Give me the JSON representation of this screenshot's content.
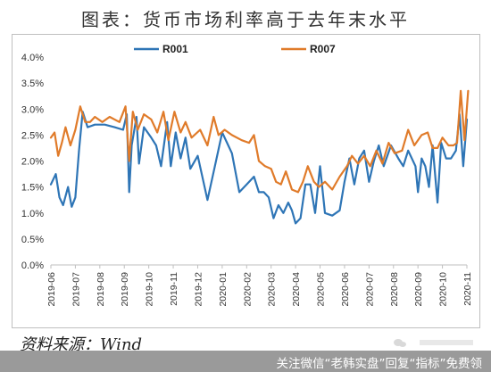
{
  "title": "图表：货币市场利率高于去年末水平",
  "source": "资料来源：Wind",
  "footer_text": "关注微信“老韩实盘”回复“指标”免费领",
  "icons": [
    "wechat-icon"
  ],
  "chart_data": {
    "type": "line",
    "title": "图表：货币市场利率高于去年末水平",
    "xlabel": "",
    "ylabel": "",
    "ylim": [
      0.0,
      4.0
    ],
    "yticks": [
      "0.0%",
      "0.5%",
      "1.0%",
      "1.5%",
      "2.0%",
      "2.5%",
      "3.0%",
      "3.5%",
      "4.0%"
    ],
    "xticks": [
      "2019-06",
      "2019-07",
      "2019-08",
      "2019-09",
      "2019-10",
      "2019-11",
      "2019-12",
      "2020-01",
      "2020-02",
      "2020-03",
      "2020-04",
      "2020-05",
      "2020-06",
      "2020-07",
      "2020-08",
      "2020-09",
      "2020-10",
      "2020-11"
    ],
    "legend_position": "top",
    "grid": false,
    "series": [
      {
        "name": "R001",
        "color": "#2E75B6",
        "points": [
          [
            0.0,
            1.55
          ],
          [
            0.2,
            1.75
          ],
          [
            0.35,
            1.3
          ],
          [
            0.5,
            1.15
          ],
          [
            0.7,
            1.5
          ],
          [
            0.85,
            1.12
          ],
          [
            1.0,
            1.3
          ],
          [
            1.15,
            2.2
          ],
          [
            1.3,
            2.95
          ],
          [
            1.5,
            2.65
          ],
          [
            1.8,
            2.7
          ],
          [
            2.2,
            2.7
          ],
          [
            2.6,
            2.65
          ],
          [
            2.95,
            2.6
          ],
          [
            3.1,
            2.9
          ],
          [
            3.2,
            1.4
          ],
          [
            3.3,
            2.3
          ],
          [
            3.5,
            2.85
          ],
          [
            3.6,
            1.95
          ],
          [
            3.8,
            2.65
          ],
          [
            4.1,
            2.45
          ],
          [
            4.3,
            2.3
          ],
          [
            4.5,
            1.9
          ],
          [
            4.75,
            2.75
          ],
          [
            4.9,
            1.9
          ],
          [
            5.1,
            2.55
          ],
          [
            5.3,
            2.05
          ],
          [
            5.5,
            2.45
          ],
          [
            5.7,
            1.85
          ],
          [
            6.0,
            2.1
          ],
          [
            6.4,
            1.25
          ],
          [
            6.7,
            1.9
          ],
          [
            7.0,
            2.55
          ],
          [
            7.4,
            2.15
          ],
          [
            7.7,
            1.4
          ],
          [
            8.0,
            1.55
          ],
          [
            8.3,
            1.7
          ],
          [
            8.5,
            1.4
          ],
          [
            8.7,
            1.4
          ],
          [
            8.9,
            1.3
          ],
          [
            9.1,
            0.9
          ],
          [
            9.3,
            1.15
          ],
          [
            9.5,
            1.0
          ],
          [
            9.7,
            1.2
          ],
          [
            9.85,
            1.05
          ],
          [
            10.0,
            0.8
          ],
          [
            10.2,
            0.9
          ],
          [
            10.4,
            1.55
          ],
          [
            10.6,
            1.55
          ],
          [
            10.8,
            1.0
          ],
          [
            11.0,
            1.9
          ],
          [
            11.2,
            1.0
          ],
          [
            11.5,
            0.95
          ],
          [
            11.8,
            1.05
          ],
          [
            12.0,
            1.6
          ],
          [
            12.2,
            2.05
          ],
          [
            12.4,
            1.55
          ],
          [
            12.6,
            2.05
          ],
          [
            12.8,
            2.2
          ],
          [
            13.0,
            1.6
          ],
          [
            13.2,
            2.0
          ],
          [
            13.4,
            2.3
          ],
          [
            13.6,
            1.9
          ],
          [
            13.9,
            2.3
          ],
          [
            14.2,
            2.05
          ],
          [
            14.4,
            1.9
          ],
          [
            14.6,
            2.2
          ],
          [
            14.9,
            1.9
          ],
          [
            15.0,
            1.4
          ],
          [
            15.15,
            2.05
          ],
          [
            15.3,
            1.9
          ],
          [
            15.45,
            1.5
          ],
          [
            15.6,
            2.3
          ],
          [
            15.8,
            1.2
          ],
          [
            15.95,
            2.35
          ],
          [
            16.15,
            2.05
          ],
          [
            16.35,
            2.05
          ],
          [
            16.55,
            2.2
          ],
          [
            16.7,
            2.9
          ],
          [
            16.85,
            1.9
          ],
          [
            17.0,
            2.8
          ]
        ]
      },
      {
        "name": "R007",
        "color": "#E07B2A",
        "points": [
          [
            0.0,
            2.45
          ],
          [
            0.15,
            2.55
          ],
          [
            0.3,
            2.1
          ],
          [
            0.45,
            2.35
          ],
          [
            0.6,
            2.65
          ],
          [
            0.8,
            2.3
          ],
          [
            1.0,
            2.6
          ],
          [
            1.2,
            3.05
          ],
          [
            1.4,
            2.75
          ],
          [
            1.6,
            2.75
          ],
          [
            1.8,
            2.85
          ],
          [
            2.1,
            2.75
          ],
          [
            2.4,
            2.85
          ],
          [
            2.8,
            2.75
          ],
          [
            3.05,
            3.05
          ],
          [
            3.2,
            2.0
          ],
          [
            3.35,
            2.95
          ],
          [
            3.55,
            2.6
          ],
          [
            3.8,
            2.9
          ],
          [
            4.1,
            2.8
          ],
          [
            4.35,
            2.55
          ],
          [
            4.6,
            2.95
          ],
          [
            4.8,
            2.4
          ],
          [
            5.05,
            2.95
          ],
          [
            5.3,
            2.55
          ],
          [
            5.5,
            2.75
          ],
          [
            5.75,
            2.45
          ],
          [
            6.1,
            2.6
          ],
          [
            6.4,
            2.3
          ],
          [
            6.65,
            2.85
          ],
          [
            6.85,
            2.5
          ],
          [
            7.1,
            2.6
          ],
          [
            7.4,
            2.5
          ],
          [
            7.8,
            2.4
          ],
          [
            8.1,
            2.35
          ],
          [
            8.3,
            2.5
          ],
          [
            8.5,
            2.0
          ],
          [
            8.75,
            1.9
          ],
          [
            9.0,
            1.85
          ],
          [
            9.2,
            1.6
          ],
          [
            9.4,
            1.55
          ],
          [
            9.6,
            1.8
          ],
          [
            9.85,
            1.45
          ],
          [
            10.1,
            1.4
          ],
          [
            10.3,
            1.6
          ],
          [
            10.5,
            1.9
          ],
          [
            10.75,
            1.6
          ],
          [
            10.95,
            1.5
          ],
          [
            11.2,
            1.6
          ],
          [
            11.5,
            1.45
          ],
          [
            11.8,
            1.7
          ],
          [
            12.1,
            1.9
          ],
          [
            12.3,
            2.1
          ],
          [
            12.55,
            1.95
          ],
          [
            12.8,
            2.1
          ],
          [
            13.05,
            1.9
          ],
          [
            13.3,
            2.2
          ],
          [
            13.55,
            1.95
          ],
          [
            13.8,
            2.35
          ],
          [
            14.05,
            2.15
          ],
          [
            14.35,
            2.2
          ],
          [
            14.6,
            2.6
          ],
          [
            14.85,
            2.3
          ],
          [
            15.15,
            2.5
          ],
          [
            15.4,
            2.55
          ],
          [
            15.6,
            2.25
          ],
          [
            15.8,
            2.25
          ],
          [
            16.0,
            2.45
          ],
          [
            16.25,
            2.3
          ],
          [
            16.45,
            2.3
          ],
          [
            16.6,
            2.35
          ],
          [
            16.75,
            3.35
          ],
          [
            16.9,
            2.4
          ],
          [
            17.05,
            3.35
          ]
        ]
      }
    ]
  }
}
